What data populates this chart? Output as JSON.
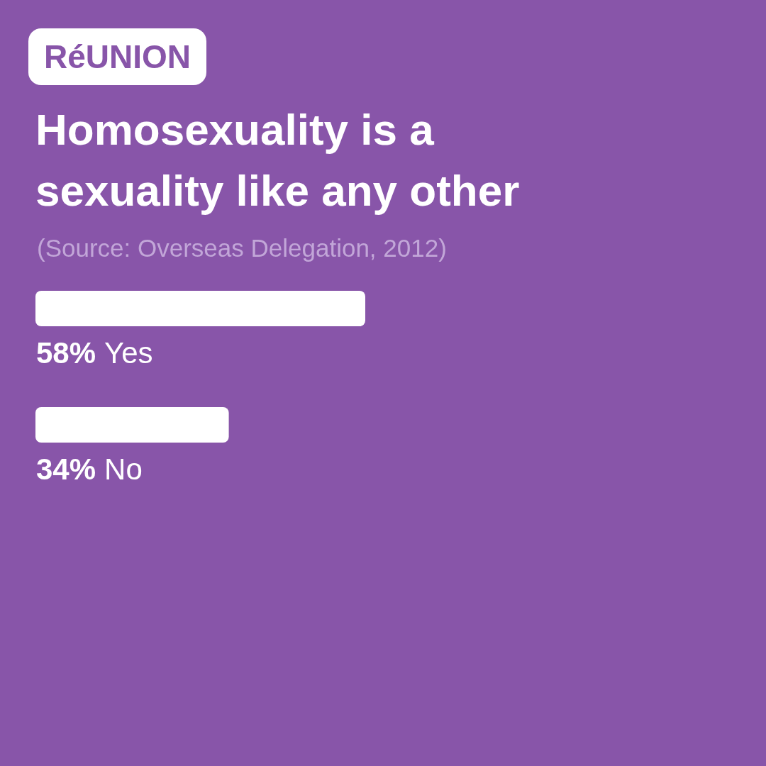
{
  "chart_data": {
    "type": "bar",
    "orientation": "horizontal",
    "title": "Homosexuality is a sexuality like any other",
    "subtitle": "RéUNION",
    "annotations": [
      "(Source: Overseas Delegation, 2012)"
    ],
    "categories": [
      "Yes",
      "No"
    ],
    "values": [
      58,
      34
    ],
    "value_labels": [
      "58%",
      "34%"
    ],
    "color": "#ffffff",
    "tick_labels": false
  }
}
